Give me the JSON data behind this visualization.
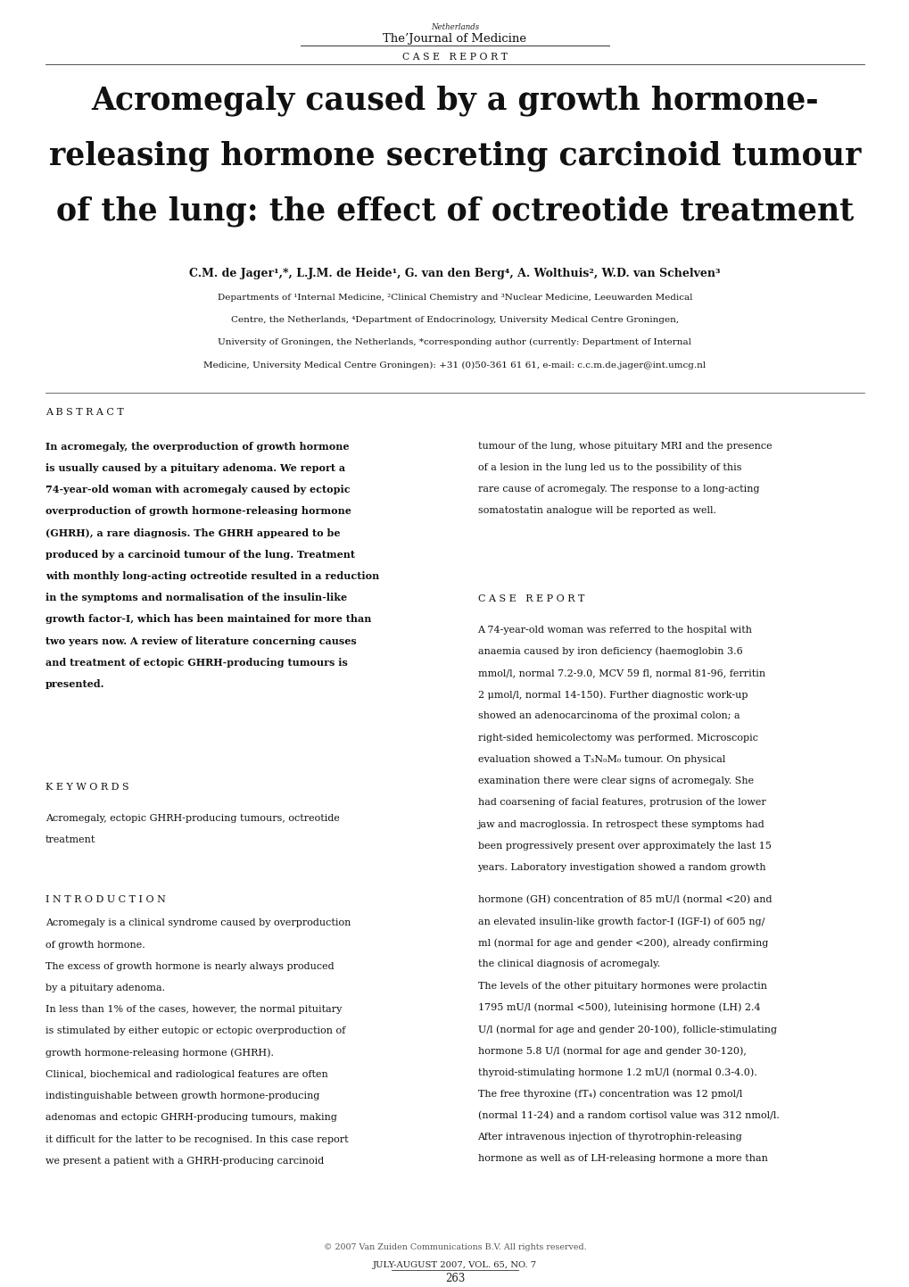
{
  "background_color": "#ffffff",
  "page_width": 10.2,
  "page_height": 14.42,
  "journal_name_small": "Netherlands",
  "journal_name": "The¹Journal of Medicine",
  "section_label": "C A S E   R E P O R T",
  "title_line1": "Acromegaly caused by a growth hormone-",
  "title_line2": "releasing hormone secreting carcinoid tumour",
  "title_line3": "of the lung: the effect of octreotide treatment",
  "authors": "C.M. de Jager¹,*, L.J.M. de Heide¹, G. van den Berg⁴, A. Wolthuis², W.D. van Schelven³",
  "affiliation_lines": [
    "Departments of ¹Internal Medicine, ²Clinical Chemistry and ³Nuclear Medicine, Leeuwarden Medical",
    "Centre, the Netherlands, ⁴Department of Endocrinology, University Medical Centre Groningen,",
    "University of Groningen, the Netherlands, *corresponding author (currently: Department of Internal",
    "Medicine, University Medical Centre Groningen): +31 (0)50-361 61 61, e-mail: c.c.m.de.jager@int.umcg.nl"
  ],
  "abstract_label": "A B S T R A C T",
  "abstract_left_lines": [
    "In acromegaly, the overproduction of growth hormone",
    "is usually caused by a pituitary adenoma. We report a",
    "74-year-old woman with acromegaly caused by ectopic",
    "overproduction of growth hormone-releasing hormone",
    "(GHRH), a rare diagnosis. The GHRH appeared to be",
    "produced by a carcinoid tumour of the lung. Treatment",
    "with monthly long-acting octreotide resulted in a reduction",
    "in the symptoms and normalisation of the insulin-like",
    "growth factor-I, which has been maintained for more than",
    "two years now. A review of literature concerning causes",
    "and treatment of ectopic GHRH-producing tumours is",
    "presented."
  ],
  "abstract_right_lines": [
    "tumour of the lung, whose pituitary MRI and the presence",
    "of a lesion in the lung led us to the possibility of this",
    "rare cause of acromegaly. The response to a long-acting",
    "somatostatin analogue will be reported as well."
  ],
  "keywords_label": "K E Y W O R D S",
  "keywords_lines": [
    "Acromegaly, ectopic GHRH-producing tumours, octreotide",
    "treatment"
  ],
  "case_report_label": "C A S E   R E P O R T",
  "case_report_lines": [
    "A 74-year-old woman was referred to the hospital with",
    "anaemia caused by iron deficiency (haemoglobin 3.6",
    "mmol/l, normal 7.2-9.0, MCV 59 fl, normal 81-96, ferritin",
    "2 μmol/l, normal 14-150). Further diagnostic work-up",
    "showed an adenocarcinoma of the proximal colon; a",
    "right-sided hemicolectomy was performed. Microscopic",
    "evaluation showed a T₃N₀M₀ tumour. On physical",
    "examination there were clear signs of acromegaly. She",
    "had coarsening of facial features, protrusion of the lower",
    "jaw and macroglossia. In retrospect these symptoms had",
    "been progressively present over approximately the last 15",
    "years. Laboratory investigation showed a random growth"
  ],
  "introduction_label": "I N T R O D U C T I O N",
  "introduction_lines": [
    "Acromegaly is a clinical syndrome caused by overproduction",
    "of growth hormone.",
    "The excess of growth hormone is nearly always produced",
    "by a pituitary adenoma.",
    "In less than 1% of the cases, however, the normal pituitary",
    "is stimulated by either eutopic or ectopic overproduction of",
    "growth hormone-releasing hormone (GHRH).",
    "Clinical, biochemical and radiological features are often",
    "indistinguishable between growth hormone-producing",
    "adenomas and ectopic GHRH-producing tumours, making",
    "it difficult for the latter to be recognised. In this case report",
    "we present a patient with a GHRH-producing carcinoid"
  ],
  "right_col_lines2": [
    "hormone (GH) concentration of 85 mU/l (normal <20) and",
    "an elevated insulin-like growth factor-I (IGF-I) of 605 ng/",
    "ml (normal for age and gender <200), already confirming",
    "the clinical diagnosis of acromegaly.",
    "The levels of the other pituitary hormones were prolactin",
    "1795 mU/l (normal <500), luteinising hormone (LH) 2.4",
    "U/l (normal for age and gender 20-100), follicle-stimulating",
    "hormone 5.8 U/l (normal for age and gender 30-120),",
    "thyroid-stimulating hormone 1.2 mU/l (normal 0.3-4.0).",
    "The free thyroxine (fT₄) concentration was 12 pmol/l",
    "(normal 11-24) and a random cortisol value was 312 nmol/l.",
    "After intravenous injection of thyrotrophin-releasing",
    "hormone as well as of LH-releasing hormone a more than"
  ],
  "footer_copyright": "© 2007 Van Zuiden Communications B.V. All rights reserved.",
  "footer_journal": "JULY-AUGUST 2007, VOL. 65, NO. 7",
  "footer_page": "263"
}
